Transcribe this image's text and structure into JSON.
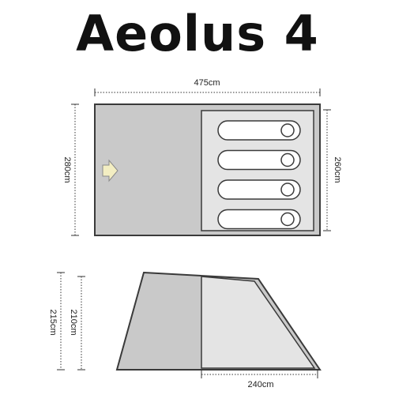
{
  "title": "Aeolus 4",
  "dimensions": {
    "length_total": "475cm",
    "width_total": "280cm",
    "width_inner": "260cm",
    "height_total": "215cm",
    "height_inner": "210cm",
    "length_inner": "240cm"
  },
  "colors": {
    "outline": "#3a3a3a",
    "outer_fill": "#c9c9c9",
    "inner_fill": "#e4e4e4",
    "bag_fill": "#ffffff",
    "arrow_fill": "#f3eec2",
    "arrow_stroke": "#8a8a8a"
  },
  "sleeping_bags": 4
}
